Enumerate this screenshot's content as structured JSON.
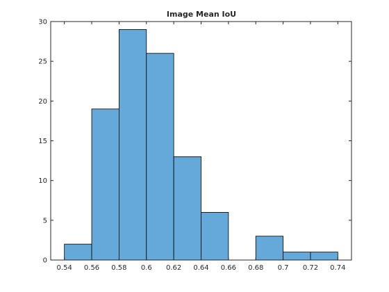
{
  "chart_data": {
    "type": "histogram",
    "title": "Image Mean IoU",
    "bins": [
      0.54,
      0.56,
      0.58,
      0.6,
      0.62,
      0.64,
      0.66,
      0.68,
      0.7,
      0.72,
      0.74
    ],
    "values": [
      2,
      19,
      29,
      26,
      13,
      6,
      0,
      3,
      1,
      1
    ],
    "color": "#64a9da",
    "xlim": [
      0.53,
      0.75
    ],
    "xticks": [
      0.54,
      0.56,
      0.58,
      0.6,
      0.62,
      0.64,
      0.66,
      0.68,
      0.7,
      0.72,
      0.74
    ],
    "ylim": [
      0,
      30
    ],
    "yticks": [
      0,
      5,
      10,
      15,
      20,
      25,
      30
    ],
    "grid": false
  }
}
